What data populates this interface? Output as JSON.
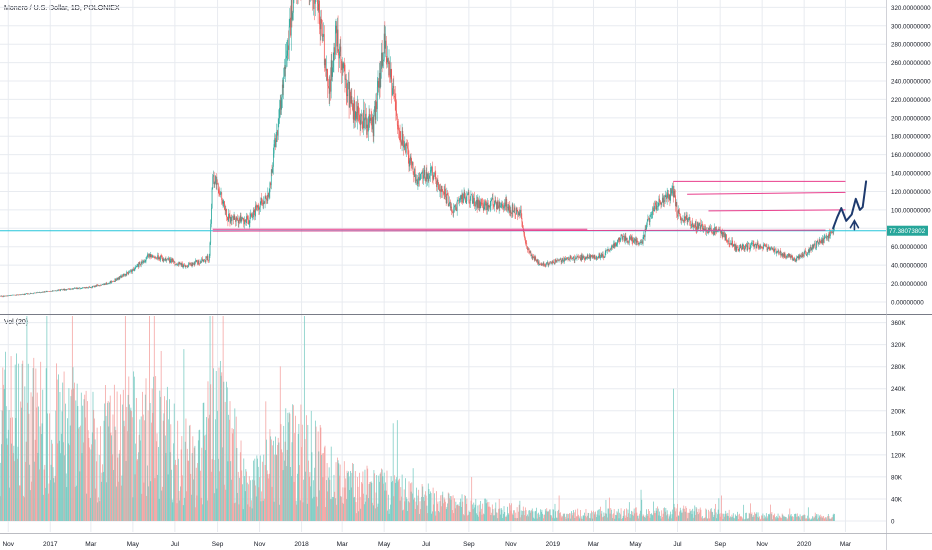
{
  "header": {
    "title": "Monero / U.S. Dollar, 1D, POLONIEX",
    "volume_label": "Vol (20)"
  },
  "price_tag": "77.38073802",
  "colors": {
    "up": "#26a69a",
    "down": "#ef5350",
    "vol_up": "#7fcdc5",
    "vol_down": "#f4a5a3",
    "grid": "#e8ebf0",
    "axis_text": "#131722",
    "hline": "#26c6da",
    "drawing_pink": "#e83e8c",
    "drawing_blue": "#1e3a6e"
  },
  "chart_data": [
    {
      "type": "line",
      "name": "price-pane",
      "ylim": [
        -12,
        328
      ],
      "y_ticks": [
        "0.00000000",
        "20.00000000",
        "40.00000000",
        "60.00000000",
        "80.00000000",
        "100.00000000",
        "120.00000000",
        "140.00000000",
        "160.00000000",
        "180.00000000",
        "200.00000000",
        "220.00000000",
        "240.00000000",
        "260.00000000",
        "280.00000000",
        "300.00000000",
        "320.00000000"
      ],
      "y_tick_values": [
        0,
        20,
        40,
        60,
        80,
        100,
        120,
        140,
        160,
        180,
        200,
        220,
        240,
        260,
        280,
        300,
        320
      ],
      "x_ticks": [
        "Nov",
        "2017",
        "Mar",
        "May",
        "Jul",
        "Sep",
        "Nov",
        "2018",
        "Mar",
        "May",
        "Jul",
        "Sep",
        "Nov",
        "2019",
        "Mar",
        "May",
        "Jul",
        "Sep",
        "Nov",
        "2020",
        "Mar"
      ],
      "x_tick_dates": [
        "2016-11-01",
        "2017-01-01",
        "2017-03-01",
        "2017-05-01",
        "2017-07-01",
        "2017-09-01",
        "2017-11-01",
        "2018-01-01",
        "2018-03-01",
        "2018-05-01",
        "2018-07-01",
        "2018-09-01",
        "2018-11-01",
        "2019-01-01",
        "2019-03-01",
        "2019-05-01",
        "2019-07-01",
        "2019-09-01",
        "2019-11-01",
        "2020-01-01",
        "2020-03-01"
      ],
      "date_range": [
        "2016-10-20",
        "2020-03-25"
      ],
      "price_path": [
        [
          "2016-10-20",
          6
        ],
        [
          "2016-12-01",
          9
        ],
        [
          "2017-01-15",
          13
        ],
        [
          "2017-03-01",
          16
        ],
        [
          "2017-04-01",
          22
        ],
        [
          "2017-05-01",
          35
        ],
        [
          "2017-05-25",
          50
        ],
        [
          "2017-06-25",
          45
        ],
        [
          "2017-07-15",
          38
        ],
        [
          "2017-08-20",
          48
        ],
        [
          "2017-08-25",
          140
        ],
        [
          "2017-09-15",
          92
        ],
        [
          "2017-10-15",
          88
        ],
        [
          "2017-11-15",
          120
        ],
        [
          "2017-12-05",
          240
        ],
        [
          "2017-12-20",
          330
        ],
        [
          "2018-01-05",
          380
        ],
        [
          "2018-01-25",
          320
        ],
        [
          "2018-02-10",
          230
        ],
        [
          "2018-02-20",
          290
        ],
        [
          "2018-03-15",
          210
        ],
        [
          "2018-04-15",
          190
        ],
        [
          "2018-05-01",
          280
        ],
        [
          "2018-05-25",
          180
        ],
        [
          "2018-06-15",
          135
        ],
        [
          "2018-07-10",
          140
        ],
        [
          "2018-08-10",
          100
        ],
        [
          "2018-08-25",
          115
        ],
        [
          "2018-09-20",
          105
        ],
        [
          "2018-10-20",
          108
        ],
        [
          "2018-11-15",
          95
        ],
        [
          "2018-11-25",
          55
        ],
        [
          "2018-12-15",
          40
        ],
        [
          "2019-01-20",
          47
        ],
        [
          "2019-03-15",
          50
        ],
        [
          "2019-04-10",
          70
        ],
        [
          "2019-05-10",
          65
        ],
        [
          "2019-05-25",
          100
        ],
        [
          "2019-06-25",
          120
        ],
        [
          "2019-07-01",
          95
        ],
        [
          "2019-08-01",
          82
        ],
        [
          "2019-09-01",
          75
        ],
        [
          "2019-09-25",
          58
        ],
        [
          "2019-10-25",
          62
        ],
        [
          "2019-11-20",
          55
        ],
        [
          "2019-12-20",
          47
        ],
        [
          "2020-01-15",
          60
        ],
        [
          "2020-02-10",
          75
        ],
        [
          "2020-02-14",
          77.38
        ]
      ],
      "horizontal_line": 77.38,
      "drawings": {
        "pink_lines": [
          [
            [
              "2017-08-25",
              79
            ],
            [
              "2019-02-20",
              79
            ]
          ],
          [
            [
              "2017-08-25",
              77
            ],
            [
              "2020-02-01",
              78
            ]
          ],
          [
            [
              "2019-06-25",
              131
            ],
            [
              "2020-03-01",
              131
            ]
          ],
          [
            [
              "2019-07-15",
              117
            ],
            [
              "2020-03-01",
              119
            ]
          ],
          [
            [
              "2019-08-15",
              99
            ],
            [
              "2020-03-01",
              100
            ]
          ]
        ],
        "blue_path": [
          [
            "2020-02-12",
            80
          ],
          [
            "2020-02-18",
            92
          ],
          [
            "2020-02-24",
            102
          ],
          [
            "2020-03-02",
            88
          ],
          [
            "2020-03-10",
            95
          ],
          [
            "2020-03-16",
            112
          ],
          [
            "2020-03-22",
            100
          ],
          [
            "2020-03-26",
            103
          ],
          [
            "2020-03-31",
            131
          ]
        ],
        "blue_arrow": [
          "2020-03-14",
          84
        ]
      }
    },
    {
      "type": "bar",
      "name": "volume-pane",
      "ylim": [
        -20000,
        372000
      ],
      "y_ticks": [
        "360K",
        "320K",
        "280K",
        "240K",
        "200K",
        "160K",
        "120K",
        "80K",
        "40K",
        "0"
      ],
      "y_tick_values": [
        360000,
        320000,
        280000,
        240000,
        200000,
        160000,
        120000,
        80000,
        40000,
        0
      ],
      "volume_profile": [
        [
          "2016-10-20",
          180000
        ],
        [
          "2017-01-01",
          160000
        ],
        [
          "2017-03-01",
          130000
        ],
        [
          "2017-05-01",
          150000
        ],
        [
          "2017-06-15",
          140000
        ],
        [
          "2017-08-01",
          90000
        ],
        [
          "2017-09-01",
          180000
        ],
        [
          "2017-10-15",
          60000
        ],
        [
          "2017-12-15",
          120000
        ],
        [
          "2018-01-15",
          110000
        ],
        [
          "2018-03-01",
          60000
        ],
        [
          "2018-05-15",
          50000
        ],
        [
          "2018-08-01",
          30000
        ],
        [
          "2018-11-20",
          15000
        ],
        [
          "2019-01-01",
          12000
        ],
        [
          "2019-04-01",
          13000
        ],
        [
          "2019-06-15",
          15000
        ],
        [
          "2019-07-01",
          18000
        ],
        [
          "2019-10-01",
          9000
        ],
        [
          "2020-01-15",
          7000
        ],
        [
          "2020-02-14",
          8000
        ]
      ],
      "spikes": [
        [
          "2019-06-25",
          240000
        ],
        [
          "2018-06-10",
          70000
        ],
        [
          "2018-10-15",
          40000
        ],
        [
          "2017-08-25",
          380000
        ],
        [
          "2017-06-01",
          380000
        ],
        [
          "2017-05-25",
          380000
        ]
      ]
    }
  ]
}
